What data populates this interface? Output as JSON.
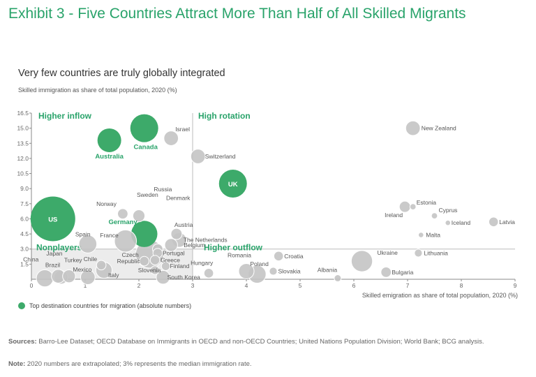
{
  "title": "Exhibit 3 - Five Countries Attract More Than Half of All Skilled Migrants",
  "subtitle": "Very few countries are truly globally integrated",
  "legend_label": "Top destination countries for migration (absolute numbers)",
  "footer": {
    "sources_label": "Sources:",
    "sources_text": "Barro-Lee Dataset; OECD Database on Immigrants in OECD and non-OECD Countries; United Nations Population Division; World Bank; BCG analysis.",
    "note_label": "Note:",
    "note_text": "2020 numbers are extrapolated; 3% represents the median immigration rate."
  },
  "colors": {
    "title": "#29a36a",
    "top_destination": "#3daa6a",
    "other": "#c4c4c4",
    "nonplayer_zone": "#ececec"
  },
  "chart_data": {
    "type": "scatter",
    "xlabel": "Skilled emigration as share of total population, 2020 (%)",
    "ylabel": "Skilled immigration as share of total population, 2020 (%)",
    "xlim": [
      0,
      9
    ],
    "ylim": [
      0,
      16.5
    ],
    "xticks": [
      0,
      1,
      2,
      3,
      4,
      5,
      6,
      7,
      8,
      9
    ],
    "yticks": [
      1.5,
      3.0,
      4.5,
      6.0,
      7.5,
      9.0,
      10.5,
      12.0,
      13.5,
      15.0,
      16.5
    ],
    "ytick_labels": [
      "1.5",
      "3.0",
      "4.5",
      "6.0",
      "7.5",
      "9.0",
      "10.5",
      "12.0",
      "13.5",
      "15.0",
      "16.5"
    ],
    "divider_x": 3.0,
    "divider_y": 3.0,
    "quadrants": [
      "Higher inflow",
      "High rotation",
      "Nonplayers",
      "Higher outflow"
    ],
    "points": [
      {
        "name": "US",
        "x": 0.4,
        "y": 6.0,
        "size": 5,
        "top": true
      },
      {
        "name": "Canada",
        "x": 2.1,
        "y": 15.0,
        "size": 3,
        "top": true
      },
      {
        "name": "Australia",
        "x": 1.45,
        "y": 13.8,
        "size": 2.5,
        "top": true
      },
      {
        "name": "UK",
        "x": 3.75,
        "y": 9.5,
        "size": 3,
        "top": true
      },
      {
        "name": "Germany",
        "x": 2.1,
        "y": 4.5,
        "size": 2.8,
        "top": true
      },
      {
        "name": "Israel",
        "x": 2.6,
        "y": 14.0,
        "size": 1.4,
        "top": false
      },
      {
        "name": "Switzerland",
        "x": 3.1,
        "y": 12.2,
        "size": 1.4,
        "top": false
      },
      {
        "name": "New Zealand",
        "x": 7.1,
        "y": 15.0,
        "size": 1.4,
        "top": false
      },
      {
        "name": "Sweden",
        "x": 2.0,
        "y": 6.3,
        "size": 1.1,
        "top": false
      },
      {
        "name": "Norway",
        "x": 1.7,
        "y": 6.5,
        "size": 0.9,
        "top": false
      },
      {
        "name": "Russia",
        "x": 2.2,
        "y": 2.5,
        "size": 3,
        "top": false
      },
      {
        "name": "Denmark",
        "x": 2.35,
        "y": 3.0,
        "size": 0.9,
        "top": false
      },
      {
        "name": "Austria",
        "x": 2.7,
        "y": 4.5,
        "size": 1.0,
        "top": false
      },
      {
        "name": "The Netherlands",
        "x": 2.75,
        "y": 3.9,
        "size": 1.4,
        "top": false
      },
      {
        "name": "Belgium",
        "x": 2.6,
        "y": 3.4,
        "size": 1.2,
        "top": false
      },
      {
        "name": "France",
        "x": 1.75,
        "y": 3.8,
        "size": 2.3,
        "top": false
      },
      {
        "name": "Spain",
        "x": 1.05,
        "y": 3.5,
        "size": 1.8,
        "top": false
      },
      {
        "name": "Portugal",
        "x": 2.35,
        "y": 2.6,
        "size": 0.8,
        "top": false
      },
      {
        "name": "Greece",
        "x": 2.3,
        "y": 1.9,
        "size": 0.8,
        "top": false
      },
      {
        "name": "Finland",
        "x": 2.5,
        "y": 1.3,
        "size": 0.7,
        "top": false
      },
      {
        "name": "Czech Republic",
        "x": 2.1,
        "y": 1.8,
        "size": 0.8,
        "top": false
      },
      {
        "name": "Slovenia",
        "x": 2.3,
        "y": 0.9,
        "size": 0.7,
        "top": false
      },
      {
        "name": "South Korea",
        "x": 2.45,
        "y": 0.2,
        "size": 1.3,
        "top": false
      },
      {
        "name": "Italy",
        "x": 1.35,
        "y": 0.9,
        "size": 1.6,
        "top": false
      },
      {
        "name": "Chile",
        "x": 1.3,
        "y": 1.4,
        "size": 0.8,
        "top": false
      },
      {
        "name": "Mexico",
        "x": 1.05,
        "y": 0.2,
        "size": 1.4,
        "top": false
      },
      {
        "name": "Turkey",
        "x": 0.7,
        "y": 0.3,
        "size": 1.2,
        "top": false
      },
      {
        "name": "Japan",
        "x": 0.55,
        "y": 0.2,
        "size": 1.3,
        "top": false
      },
      {
        "name": "China",
        "x": 0.25,
        "y": 0.1,
        "size": 1.7,
        "top": false
      },
      {
        "name": "Brazil",
        "x": 0.5,
        "y": 0.3,
        "size": 1.3,
        "top": false
      },
      {
        "name": "Hungary",
        "x": 3.3,
        "y": 0.6,
        "size": 0.8,
        "top": false
      },
      {
        "name": "Romania",
        "x": 4.0,
        "y": 0.8,
        "size": 1.5,
        "top": false
      },
      {
        "name": "Poland",
        "x": 4.2,
        "y": 0.5,
        "size": 1.8,
        "top": false
      },
      {
        "name": "Croatia",
        "x": 4.6,
        "y": 2.3,
        "size": 0.8,
        "top": false
      },
      {
        "name": "Slovakia",
        "x": 4.5,
        "y": 0.8,
        "size": 0.6,
        "top": false
      },
      {
        "name": "Albania",
        "x": 5.7,
        "y": 0.1,
        "size": 0.5,
        "top": false
      },
      {
        "name": "Ukraine",
        "x": 6.15,
        "y": 1.8,
        "size": 2.2,
        "top": false
      },
      {
        "name": "Bulgaria",
        "x": 6.6,
        "y": 0.7,
        "size": 0.9,
        "top": false
      },
      {
        "name": "Lithuania",
        "x": 7.2,
        "y": 2.6,
        "size": 0.6,
        "top": false
      },
      {
        "name": "Estonia",
        "x": 7.1,
        "y": 7.2,
        "size": 0.4,
        "top": false
      },
      {
        "name": "Ireland",
        "x": 6.95,
        "y": 7.2,
        "size": 1.0,
        "top": false
      },
      {
        "name": "Cyprus",
        "x": 7.5,
        "y": 6.3,
        "size": 0.4,
        "top": false
      },
      {
        "name": "Iceland",
        "x": 7.75,
        "y": 5.6,
        "size": 0.3,
        "top": false
      },
      {
        "name": "Latvia",
        "x": 8.6,
        "y": 5.7,
        "size": 0.8,
        "top": false
      },
      {
        "name": "Malta",
        "x": 7.25,
        "y": 4.4,
        "size": 0.3,
        "top": false
      }
    ]
  }
}
